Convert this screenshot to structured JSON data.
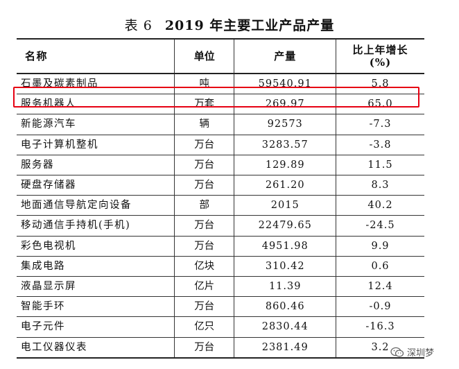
{
  "table": {
    "number": "表 6",
    "title": "2019 年主要工业产品产量",
    "headers": {
      "name": "名称",
      "unit": "单位",
      "output": "产量",
      "growth_line1": "比上年增长",
      "growth_line2": "(%)"
    },
    "rows": [
      {
        "name": "石墨及碳素制品",
        "unit": "吨",
        "output": "59540.91",
        "growth": "5.8"
      },
      {
        "name": "服务机器人",
        "unit": "万套",
        "output": "269.97",
        "growth": "65.0"
      },
      {
        "name": "新能源汽车",
        "unit": "辆",
        "output": "92573",
        "growth": "-7.3"
      },
      {
        "name": "电子计算机整机",
        "unit": "万台",
        "output": "3283.57",
        "growth": "-3.8"
      },
      {
        "name": "服务器",
        "unit": "万台",
        "output": "129.89",
        "growth": "11.5"
      },
      {
        "name": "硬盘存储器",
        "unit": "万台",
        "output": "261.20",
        "growth": "8.3"
      },
      {
        "name": "地面通信导航定向设备",
        "unit": "部",
        "output": "2015",
        "growth": "40.2"
      },
      {
        "name": "移动通信手持机(手机)",
        "unit": "万台",
        "output": "22479.65",
        "growth": "-24.5"
      },
      {
        "name": "彩色电视机",
        "unit": "万台",
        "output": "4951.98",
        "growth": "9.9"
      },
      {
        "name": "集成电路",
        "unit": "亿块",
        "output": "310.42",
        "growth": "0.6"
      },
      {
        "name": "液晶显示屏",
        "unit": "亿片",
        "output": "11.39",
        "growth": "12.4"
      },
      {
        "name": "智能手环",
        "unit": "万台",
        "output": "860.46",
        "growth": "-0.9"
      },
      {
        "name": "电子元件",
        "unit": "亿只",
        "output": "2830.44",
        "growth": "-16.3"
      },
      {
        "name": "电工仪器仪表",
        "unit": "万台",
        "output": "2381.49",
        "growth": "3.2"
      }
    ],
    "highlight_color": "#e60012"
  },
  "watermark": {
    "icon": "wechat-icon",
    "text": "深圳梦"
  }
}
